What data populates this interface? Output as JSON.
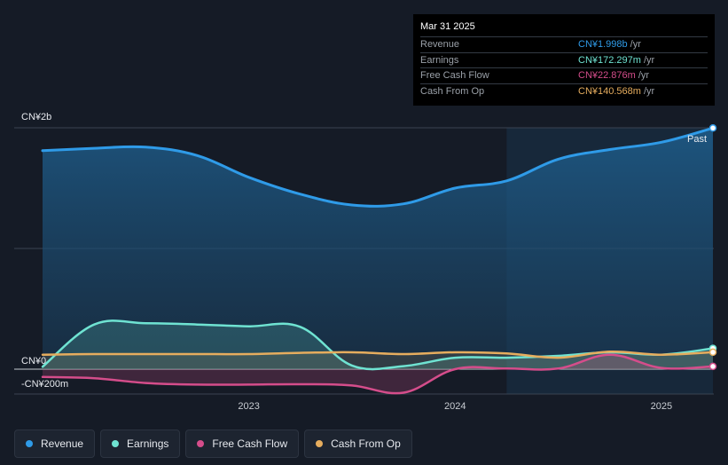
{
  "tooltip": {
    "date": "Mar 31 2025",
    "rows": [
      {
        "label": "Revenue",
        "value": "CN¥1.998b",
        "unit": "/yr",
        "color": "#2f9be8"
      },
      {
        "label": "Earnings",
        "value": "CN¥172.297m",
        "unit": "/yr",
        "color": "#6fe3d2"
      },
      {
        "label": "Free Cash Flow",
        "value": "CN¥22.876m",
        "unit": "/yr",
        "color": "#d54d8b"
      },
      {
        "label": "Cash From Op",
        "value": "CN¥140.568m",
        "unit": "/yr",
        "color": "#e6ad5e"
      }
    ]
  },
  "legend": [
    {
      "label": "Revenue",
      "color": "#2f9be8"
    },
    {
      "label": "Earnings",
      "color": "#6fe3d2"
    },
    {
      "label": "Free Cash Flow",
      "color": "#d54d8b"
    },
    {
      "label": "Cash From Op",
      "color": "#e6ad5e"
    }
  ],
  "chart_data": {
    "type": "area",
    "title": "",
    "xlabel": "",
    "ylabel": "",
    "y_unit": "CN¥ millions",
    "xlim": [
      2022.0,
      2025.25
    ],
    "ylim": [
      -200,
      2000
    ],
    "y_tick_labels": [
      {
        "value": 2000,
        "label": "CN¥2b"
      },
      {
        "value": 0,
        "label": "CN¥0"
      },
      {
        "value": -200,
        "label": "-CN¥200m"
      }
    ],
    "x_tick_labels": [
      {
        "value": 2023,
        "label": "2023"
      },
      {
        "value": 2024,
        "label": "2024"
      },
      {
        "value": 2025,
        "label": "2025"
      }
    ],
    "past_label": "Past",
    "past_region_start": 2024.25,
    "series": [
      {
        "name": "Revenue",
        "color": "#2f9be8",
        "points": [
          [
            2022.0,
            1810
          ],
          [
            2022.25,
            1830
          ],
          [
            2022.5,
            1840
          ],
          [
            2022.75,
            1770
          ],
          [
            2023.0,
            1590
          ],
          [
            2023.25,
            1450
          ],
          [
            2023.5,
            1360
          ],
          [
            2023.75,
            1370
          ],
          [
            2024.0,
            1500
          ],
          [
            2024.25,
            1560
          ],
          [
            2024.5,
            1740
          ],
          [
            2024.75,
            1820
          ],
          [
            2025.0,
            1880
          ],
          [
            2025.25,
            1998
          ]
        ]
      },
      {
        "name": "Earnings",
        "color": "#6fe3d2",
        "points": [
          [
            2022.0,
            20
          ],
          [
            2022.25,
            370
          ],
          [
            2022.5,
            380
          ],
          [
            2022.75,
            370
          ],
          [
            2023.0,
            355
          ],
          [
            2023.25,
            350
          ],
          [
            2023.5,
            30
          ],
          [
            2023.75,
            25
          ],
          [
            2024.0,
            95
          ],
          [
            2024.25,
            95
          ],
          [
            2024.5,
            110
          ],
          [
            2024.75,
            140
          ],
          [
            2025.0,
            120
          ],
          [
            2025.25,
            172.297
          ]
        ]
      },
      {
        "name": "Free Cash Flow",
        "color": "#d54d8b",
        "points": [
          [
            2022.0,
            -65
          ],
          [
            2022.25,
            -75
          ],
          [
            2022.5,
            -115
          ],
          [
            2022.75,
            -128
          ],
          [
            2023.0,
            -128
          ],
          [
            2023.25,
            -125
          ],
          [
            2023.5,
            -135
          ],
          [
            2023.75,
            -195
          ],
          [
            2024.0,
            0
          ],
          [
            2024.25,
            5
          ],
          [
            2024.5,
            5
          ],
          [
            2024.75,
            120
          ],
          [
            2025.0,
            10
          ],
          [
            2025.25,
            22.876
          ]
        ]
      },
      {
        "name": "Cash From Op",
        "color": "#e6ad5e",
        "points": [
          [
            2022.0,
            120
          ],
          [
            2022.25,
            125
          ],
          [
            2022.5,
            125
          ],
          [
            2022.75,
            125
          ],
          [
            2023.0,
            125
          ],
          [
            2023.25,
            135
          ],
          [
            2023.5,
            140
          ],
          [
            2023.75,
            125
          ],
          [
            2024.0,
            140
          ],
          [
            2024.25,
            130
          ],
          [
            2024.5,
            95
          ],
          [
            2024.75,
            145
          ],
          [
            2025.0,
            120
          ],
          [
            2025.25,
            140.568
          ]
        ]
      }
    ]
  }
}
